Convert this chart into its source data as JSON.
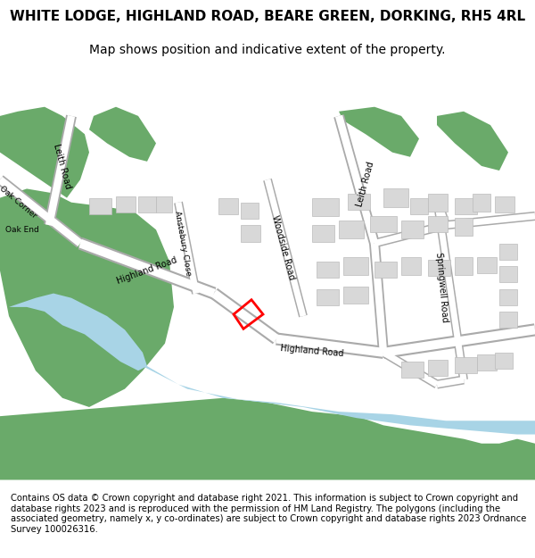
{
  "title_line1": "WHITE LODGE, HIGHLAND ROAD, BEARE GREEN, DORKING, RH5 4RL",
  "title_line2": "Map shows position and indicative extent of the property.",
  "copyright_text": "Contains OS data © Crown copyright and database right 2021. This information is subject to Crown copyright and database rights 2023 and is reproduced with the permission of HM Land Registry. The polygons (including the associated geometry, namely x, y co-ordinates) are subject to Crown copyright and database rights 2023 Ordnance Survey 100026316.",
  "bg_color": "#ffffff",
  "map_bg": "#f0ede8",
  "water_color": "#a8d4e6",
  "plot_color": "#ff0000",
  "green_color": "#6aaa6a",
  "building_color": "#d8d8d8",
  "building_edge": "#bbbbbb",
  "road_color": "#ffffff",
  "road_outline": "#aaaaaa",
  "title_fontsize": 11,
  "subtitle_fontsize": 10,
  "copyright_fontsize": 7.2,
  "figsize": [
    6.0,
    6.25
  ],
  "dpi": 100
}
